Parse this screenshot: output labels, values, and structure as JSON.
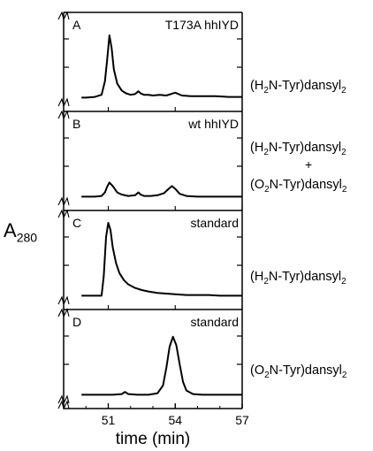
{
  "chart_data": {
    "type": "line",
    "xlabel": "time (min)",
    "ylabel": "A",
    "ylabel_sub": "280",
    "xlim": [
      49,
      57
    ],
    "x_ticks": [
      51,
      54,
      57
    ],
    "panels": [
      {
        "letter": "A",
        "title": "T173A hhIYD",
        "compound_lines": [
          {
            "pre": "(H",
            "sub1": "2",
            "mid": "N-Tyr)dansyl",
            "sub2": "2"
          }
        ],
        "series": {
          "x": [
            49.8,
            50.0,
            50.4,
            50.7,
            50.85,
            50.95,
            51.05,
            51.15,
            51.25,
            51.4,
            51.6,
            51.8,
            52.0,
            52.2,
            52.35,
            52.45,
            52.6,
            52.8,
            53.0,
            53.3,
            53.6,
            53.8,
            54.0,
            54.3,
            54.7,
            55.2,
            55.8,
            56.4,
            57.0
          ],
          "y": [
            0.02,
            0.02,
            0.03,
            0.06,
            0.25,
            0.55,
            0.9,
            0.72,
            0.42,
            0.22,
            0.12,
            0.08,
            0.06,
            0.07,
            0.11,
            0.08,
            0.06,
            0.06,
            0.05,
            0.06,
            0.05,
            0.07,
            0.09,
            0.05,
            0.04,
            0.04,
            0.04,
            0.03,
            0.03
          ]
        }
      },
      {
        "letter": "B",
        "title": "wt hhIYD",
        "compound_lines": [
          {
            "pre": "(H",
            "sub1": "2",
            "mid": "N-Tyr)dansyl",
            "sub2": "2"
          },
          {
            "pre": "(O",
            "sub1": "2",
            "mid": "N-Tyr)dansyl",
            "sub2": "2"
          }
        ],
        "plus": "+",
        "series": {
          "x": [
            49.8,
            50.0,
            50.4,
            50.7,
            50.85,
            50.95,
            51.05,
            51.2,
            51.4,
            51.6,
            51.9,
            52.2,
            52.35,
            52.45,
            52.6,
            52.9,
            53.2,
            53.5,
            53.7,
            53.85,
            54.0,
            54.2,
            54.5,
            55.0,
            55.5,
            56.0,
            56.5,
            57.0
          ],
          "y": [
            0.02,
            0.02,
            0.02,
            0.03,
            0.08,
            0.16,
            0.22,
            0.17,
            0.08,
            0.05,
            0.03,
            0.04,
            0.08,
            0.05,
            0.03,
            0.03,
            0.04,
            0.07,
            0.13,
            0.17,
            0.13,
            0.06,
            0.03,
            0.02,
            0.02,
            0.02,
            0.02,
            0.02
          ]
        }
      },
      {
        "letter": "C",
        "title": "standard",
        "compound_lines": [
          {
            "pre": "(H",
            "sub1": "2",
            "mid": "N-Tyr)dansyl",
            "sub2": "2"
          }
        ],
        "series": {
          "x": [
            49.8,
            50.0,
            50.4,
            50.7,
            50.8,
            50.9,
            51.0,
            51.1,
            51.2,
            51.35,
            51.5,
            51.7,
            51.9,
            52.2,
            52.5,
            52.8,
            53.2,
            53.6,
            54.0,
            54.5,
            55.0,
            55.5,
            56.0,
            56.5,
            57.0
          ],
          "y": [
            0.02,
            0.02,
            0.02,
            0.02,
            0.3,
            0.85,
            1.05,
            0.95,
            0.7,
            0.48,
            0.34,
            0.24,
            0.18,
            0.13,
            0.1,
            0.08,
            0.06,
            0.05,
            0.04,
            0.03,
            0.03,
            0.03,
            0.02,
            0.02,
            0.02
          ]
        }
      },
      {
        "letter": "D",
        "title": "standard",
        "compound_lines": [
          {
            "pre": "(O",
            "sub1": "2",
            "mid": "N-Tyr)dansyl",
            "sub2": "2"
          }
        ],
        "series": {
          "x": [
            49.8,
            50.5,
            51.2,
            51.6,
            51.75,
            51.9,
            52.3,
            52.8,
            53.2,
            53.45,
            53.6,
            53.75,
            53.9,
            54.05,
            54.2,
            54.35,
            54.5,
            54.8,
            55.2,
            55.8,
            56.4,
            57.0
          ],
          "y": [
            0.02,
            0.02,
            0.02,
            0.03,
            0.06,
            0.03,
            0.02,
            0.02,
            0.04,
            0.15,
            0.4,
            0.7,
            0.84,
            0.72,
            0.45,
            0.2,
            0.08,
            0.03,
            0.02,
            0.02,
            0.02,
            0.02
          ]
        }
      }
    ]
  }
}
